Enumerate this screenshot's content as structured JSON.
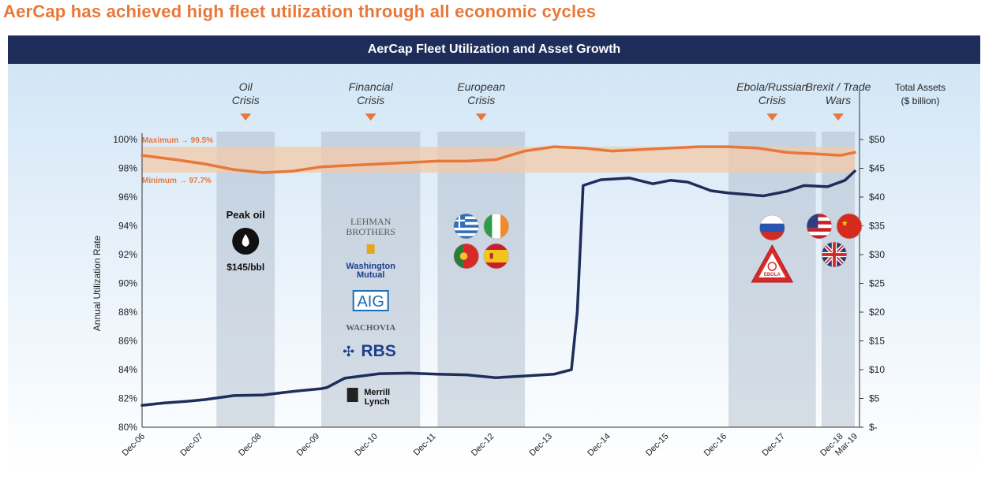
{
  "headline": "AerCap has achieved high fleet utilization through all economic cycles",
  "chart_header": "AerCap Fleet Utilization and Asset Growth",
  "chart_data": {
    "type": "line",
    "title": "AerCap Fleet Utilization and Asset Growth",
    "x_categories": [
      "Dec-06",
      "Dec-07",
      "Dec-08",
      "Dec-09",
      "Dec-10",
      "Dec-11",
      "Dec-12",
      "Dec-13",
      "Dec-14",
      "Dec-15",
      "Dec-16",
      "Dec-17",
      "Dec-18",
      "Mar-19"
    ],
    "left_axis": {
      "label": "Annual Utilization Rate",
      "range": [
        80,
        100
      ],
      "ticks": [
        "80%",
        "82%",
        "84%",
        "86%",
        "88%",
        "90%",
        "92%",
        "94%",
        "96%",
        "98%",
        "100%"
      ]
    },
    "right_axis": {
      "label_line1": "Total Assets",
      "label_line2": "($ billion)",
      "range": [
        0,
        50
      ],
      "ticks": [
        "$-",
        "$5",
        "$10",
        "$15",
        "$20",
        "$25",
        "$30",
        "$35",
        "$40",
        "$45",
        "$50"
      ]
    },
    "utilization_band": {
      "max_label": "Maximum → 99.5%",
      "min_label": "Minimum → 97.7%",
      "max": 99.5,
      "min": 97.7
    },
    "series": [
      {
        "axis": "left",
        "color": "#e8773a",
        "points": [
          [
            2006.92,
            98.9
          ],
          [
            2007.5,
            98.6
          ],
          [
            2008.0,
            98.3
          ],
          [
            2008.5,
            97.9
          ],
          [
            2009.0,
            97.7
          ],
          [
            2009.5,
            97.8
          ],
          [
            2010.0,
            98.1
          ],
          [
            2010.5,
            98.2
          ],
          [
            2011.0,
            98.3
          ],
          [
            2011.5,
            98.4
          ],
          [
            2012.0,
            98.5
          ],
          [
            2012.5,
            98.5
          ],
          [
            2013.0,
            98.6
          ],
          [
            2013.5,
            99.2
          ],
          [
            2014.0,
            99.5
          ],
          [
            2014.5,
            99.4
          ],
          [
            2015.0,
            99.2
          ],
          [
            2015.5,
            99.3
          ],
          [
            2016.0,
            99.4
          ],
          [
            2016.5,
            99.5
          ],
          [
            2017.0,
            99.5
          ],
          [
            2017.5,
            99.4
          ],
          [
            2018.0,
            99.1
          ],
          [
            2018.5,
            99.0
          ],
          [
            2018.92,
            98.9
          ],
          [
            2019.17,
            99.1
          ]
        ]
      },
      {
        "axis": "right",
        "color": "#1f2d5a",
        "points": [
          [
            2006.92,
            3.8
          ],
          [
            2007.3,
            4.2
          ],
          [
            2007.7,
            4.5
          ],
          [
            2008.0,
            4.8
          ],
          [
            2008.5,
            5.5
          ],
          [
            2009.0,
            5.6
          ],
          [
            2009.5,
            6.2
          ],
          [
            2010.0,
            6.7
          ],
          [
            2010.1,
            6.9
          ],
          [
            2010.4,
            8.5
          ],
          [
            2011.0,
            9.3
          ],
          [
            2011.5,
            9.4
          ],
          [
            2012.0,
            9.2
          ],
          [
            2012.5,
            9.1
          ],
          [
            2013.0,
            8.6
          ],
          [
            2013.5,
            8.9
          ],
          [
            2014.0,
            9.2
          ],
          [
            2014.3,
            10.0
          ],
          [
            2014.4,
            20.0
          ],
          [
            2014.5,
            42.0
          ],
          [
            2014.8,
            43.0
          ],
          [
            2015.3,
            43.3
          ],
          [
            2015.7,
            42.3
          ],
          [
            2016.0,
            42.9
          ],
          [
            2016.3,
            42.6
          ],
          [
            2016.7,
            41.1
          ],
          [
            2017.0,
            40.7
          ],
          [
            2017.6,
            40.2
          ],
          [
            2018.0,
            41.0
          ],
          [
            2018.3,
            42.0
          ],
          [
            2018.7,
            41.8
          ],
          [
            2019.0,
            42.9
          ],
          [
            2019.17,
            44.5
          ]
        ]
      }
    ],
    "crisis_periods": [
      {
        "label1": "Oil",
        "label2": "Crisis",
        "start": 2008.2,
        "end": 2009.2
      },
      {
        "label1": "Financial",
        "label2": "Crisis",
        "start": 2010.0,
        "end": 2011.7
      },
      {
        "label1": "European",
        "label2": "Crisis",
        "start": 2012.0,
        "end": 2013.5
      },
      {
        "label1": "Ebola/Russian",
        "label2": "Crisis",
        "start": 2017.0,
        "end": 2018.5
      },
      {
        "label1": "Brexit / Trade",
        "label2": "Wars",
        "start": 2018.6,
        "end": 2019.17
      }
    ]
  },
  "annotations": {
    "oil": {
      "title": "Peak oil",
      "price": "$145/bbl"
    },
    "financial_logos": {
      "lehman_line1": "LEHMAN",
      "lehman_line2": "BROTHERS",
      "wamu_line1": "Washington",
      "wamu_line2": "Mutual",
      "aig": "AIG",
      "wachovia": "WACHOVIA",
      "rbs": "RBS",
      "merrill_line1": "Merrill",
      "merrill_line2": "Lynch"
    },
    "ebola_sign": "EBOLA"
  },
  "colors": {
    "header": "#1f2d5a",
    "headline": "#e8773a",
    "utilization": "#e8773a",
    "assets": "#1f2d5a",
    "band": "#f3c9a8",
    "crisis_shade": "#a9b6c6"
  }
}
